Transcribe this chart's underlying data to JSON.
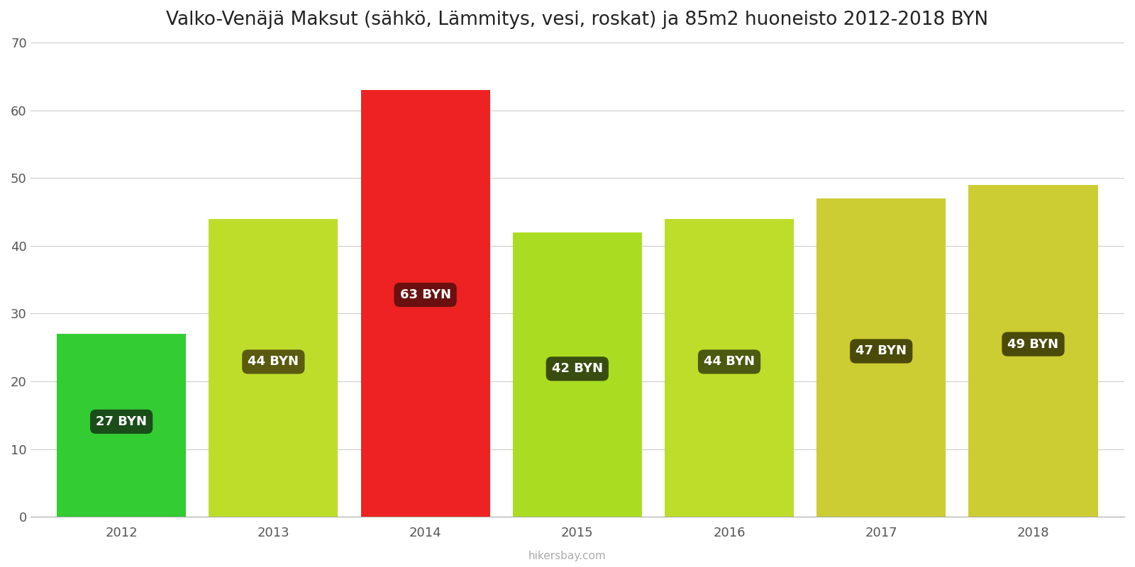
{
  "title": "Valko-Venäjä Maksut (sähkö, Lämmitys, vesi, roskat) ja 85m2 huoneisto 2012-2018 BYN",
  "years": [
    2012,
    2013,
    2014,
    2015,
    2016,
    2017,
    2018
  ],
  "values": [
    27,
    44,
    63,
    42,
    44,
    47,
    49
  ],
  "bar_colors": [
    "#33cc33",
    "#bedd2a",
    "#ee2222",
    "#aadd22",
    "#bedd2a",
    "#cccc33",
    "#cccc33"
  ],
  "label_bg_colors": [
    "#1a4d1a",
    "#5a5a10",
    "#6b1010",
    "#3a4d10",
    "#4a5a10",
    "#4a4a0a",
    "#4a4a0a"
  ],
  "ylim": [
    0,
    70
  ],
  "yticks": [
    0,
    10,
    20,
    30,
    40,
    50,
    60,
    70
  ],
  "watermark": "hikersbay.com",
  "title_fontsize": 19,
  "tick_fontsize": 13,
  "label_fontsize": 13,
  "bar_width": 0.85
}
